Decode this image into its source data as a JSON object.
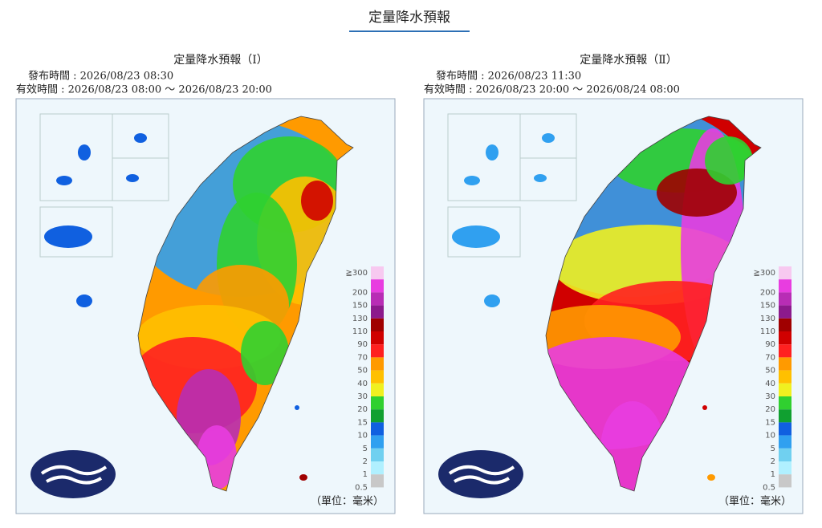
{
  "header": {
    "title": "定量降水預報"
  },
  "panels": [
    {
      "title": "定量降水預報（Ⅰ）",
      "issued": "發布時間 : 2026/08/23 08:30",
      "valid": "有效時間 : 2026/08/23 08:00 ～ 2026/08/23 20:00",
      "unit": "（單位：毫米）"
    },
    {
      "title": "定量降水預報（Ⅱ）",
      "issued": "發布時間 : 2026/08/23 11:30",
      "valid": "有效時間 : 2026/08/23 20:00 ～ 2026/08/24 08:00",
      "unit": "（單位：毫米）"
    }
  ],
  "legend": {
    "labels": [
      "≧300",
      "200",
      "150",
      "130",
      "110",
      "90",
      "70",
      "50",
      "40",
      "30",
      "20",
      "15",
      "10",
      "5",
      "2",
      "1",
      "0.5"
    ],
    "colors": [
      "#f7c9f0",
      "#e83de0",
      "#b82db5",
      "#8c1a8c",
      "#a00000",
      "#d00000",
      "#ff2020",
      "#ff9a00",
      "#ffc000",
      "#f0f020",
      "#30d030",
      "#10a030",
      "#1060e0",
      "#30a0f0",
      "#70d0f0",
      "#b0f0ff",
      "#c8c8c8"
    ]
  }
}
